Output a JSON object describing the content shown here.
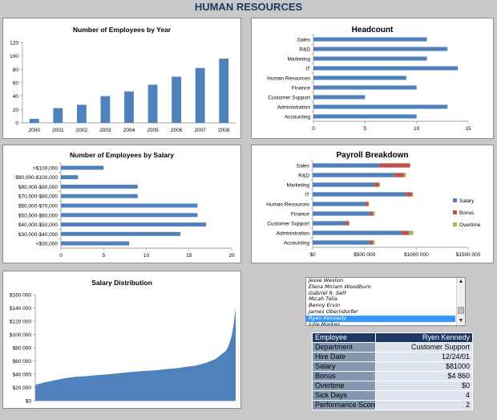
{
  "page": {
    "title": "HUMAN RESOURCES"
  },
  "chart_data": [
    {
      "id": "employees_by_year",
      "type": "bar",
      "title": "Number of Employees by Year",
      "categories": [
        "2000",
        "2001",
        "2002",
        "2003",
        "2004",
        "2005",
        "2006",
        "2007",
        "2008"
      ],
      "values": [
        6,
        22,
        27,
        40,
        47,
        57,
        69,
        82,
        96
      ],
      "ylim": [
        0,
        120
      ],
      "yticks": [
        0,
        20,
        40,
        60,
        80,
        100,
        120
      ],
      "color": "#4f81bd"
    },
    {
      "id": "headcount",
      "type": "bar",
      "orientation": "horizontal",
      "title": "Headcount",
      "categories": [
        "Sales",
        "R&D",
        "Marketing",
        "IT",
        "Human Resources",
        "Finance",
        "Customer Support",
        "Administration",
        "Accounting"
      ],
      "values": [
        11,
        13,
        11,
        14,
        9,
        10,
        5,
        13,
        10
      ],
      "xlim": [
        0,
        15
      ],
      "xticks": [
        0,
        5,
        10,
        15
      ],
      "color": "#4f81bd"
    },
    {
      "id": "employees_by_salary",
      "type": "bar",
      "orientation": "horizontal",
      "title": "Number of Employees by Salary",
      "categories": [
        ">$100,000",
        "$90,000-$100,000",
        "$80,000-$90,000",
        "$70,000-$80,000",
        "$60,000-$70,000",
        "$50,000-$60,000",
        "$40,000-$50,000",
        "$30,000-$40,000",
        "<$30,000"
      ],
      "values": [
        5,
        2,
        9,
        9,
        16,
        16,
        17,
        14,
        8
      ],
      "xlim": [
        0,
        20
      ],
      "xticks": [
        0,
        5,
        10,
        15,
        20
      ],
      "color": "#4f81bd"
    },
    {
      "id": "payroll_breakdown",
      "type": "bar",
      "orientation": "horizontal",
      "stacked": true,
      "title": "Payroll Breakdown",
      "categories": [
        "Sales",
        "R&D",
        "Marketing",
        "IT",
        "Human Resources",
        "Finance",
        "Customer Support",
        "Administration",
        "Accounting"
      ],
      "series": [
        {
          "name": "Salary",
          "color": "#4f81bd",
          "values": [
            640000,
            790000,
            590000,
            900000,
            510000,
            550000,
            310000,
            860000,
            550000
          ]
        },
        {
          "name": "Bonus",
          "color": "#c0504d",
          "values": [
            300000,
            90000,
            50000,
            60000,
            30000,
            30000,
            40000,
            70000,
            30000
          ]
        },
        {
          "name": "Overtime",
          "color": "#9bbb59",
          "values": [
            0,
            20000,
            10000,
            10000,
            5000,
            20000,
            5000,
            40000,
            20000
          ]
        }
      ],
      "xlim": [
        0,
        1500000
      ],
      "xticks": [
        "$0",
        "$500 000",
        "$1000 000",
        "$1500 000"
      ],
      "xtick_values": [
        0,
        500000,
        1000000,
        1500000
      ]
    },
    {
      "id": "salary_distribution",
      "type": "area",
      "title": "Salary Distribution",
      "x": [
        0,
        5,
        10,
        15,
        20,
        25,
        30,
        35,
        40,
        45,
        50,
        55,
        60,
        65,
        70,
        75,
        80,
        85,
        90,
        95,
        96,
        97,
        98,
        99,
        100
      ],
      "y": [
        24000,
        28000,
        31000,
        34000,
        36000,
        37000,
        38500,
        39500,
        41000,
        42500,
        44000,
        45000,
        46000,
        47500,
        49000,
        51000,
        53000,
        57000,
        63000,
        75000,
        80000,
        88000,
        98000,
        115000,
        140000
      ],
      "ylim": [
        0,
        160000
      ],
      "yticks": [
        "$0",
        "$20 000",
        "$40 000",
        "$60 000",
        "$80 000",
        "$100 000",
        "$120 000",
        "$140 000",
        "$160 000"
      ],
      "ytick_values": [
        0,
        20000,
        40000,
        60000,
        80000,
        100000,
        120000,
        140000,
        160000
      ],
      "color": "#4f81bd"
    }
  ],
  "employee_list": {
    "items": [
      "Jesse Weston",
      "Elena Miriam Woodburn",
      "Gabriel R. Self",
      "Micah Tolia",
      "Benny Ervin",
      "James Oberndorfer",
      "Ryen Kennedy",
      "Julie Markes"
    ],
    "selected_index": 6,
    "scroll_up_icon": "▲",
    "scroll_down_icon": "▼"
  },
  "employee_details": {
    "header": {
      "label": "Employee",
      "value": "Ryen Kennedy"
    },
    "rows": [
      {
        "label": "Department",
        "value": "Customer Support"
      },
      {
        "label": "Hire Date",
        "value": "12/24/01"
      },
      {
        "label": "Salary",
        "value": "$81000"
      },
      {
        "label": "Bonus",
        "value": "$4 860"
      },
      {
        "label": "Overtime",
        "value": "$0"
      },
      {
        "label": "Sick Days",
        "value": "4"
      },
      {
        "label": "Performance Score",
        "value": "2"
      }
    ]
  }
}
